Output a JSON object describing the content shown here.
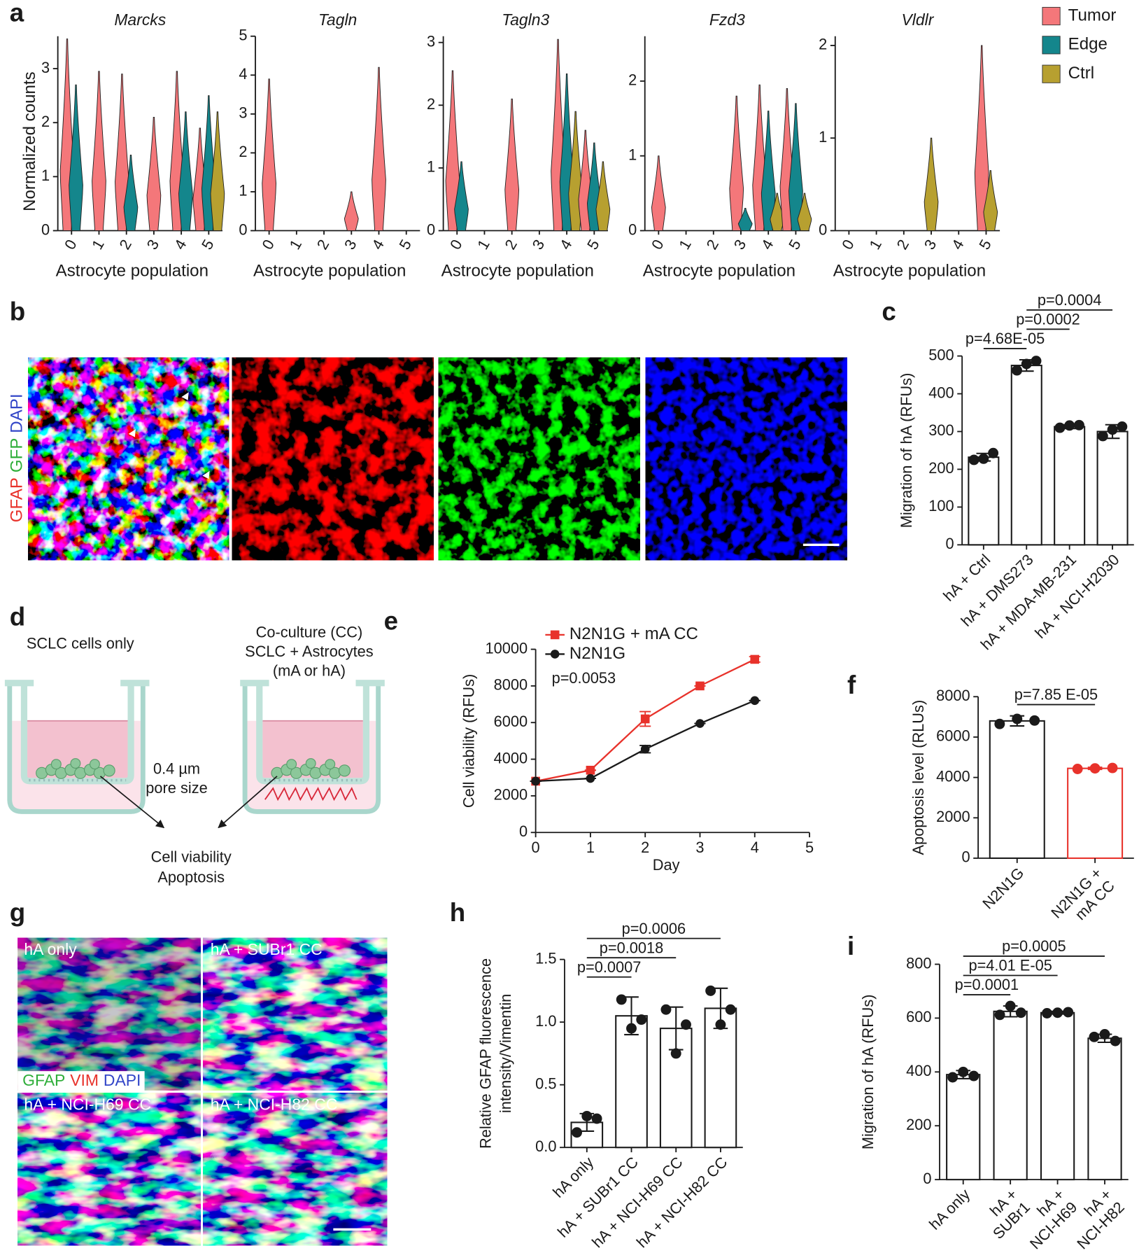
{
  "panels": [
    "a",
    "b",
    "c",
    "d",
    "e",
    "f",
    "g",
    "h",
    "i"
  ],
  "chart_data": [
    {
      "type": "violin-grid",
      "xlabel": "Astrocyte population",
      "ylabel": "Normalized counts",
      "categories": [
        "0",
        "1",
        "2",
        "3",
        "4",
        "5"
      ],
      "series": [
        {
          "name": "Tumor",
          "color": "#f4777a"
        },
        {
          "name": "Edge",
          "color": "#14868c"
        },
        {
          "name": "Ctrl",
          "color": "#b7a030"
        }
      ],
      "plots": [
        {
          "title": "Marcks",
          "ylim": [
            0,
            3.6
          ],
          "yticks": [
            0,
            1,
            2,
            3
          ],
          "values": [
            [
              3.55,
              2.95,
              2.9,
              2.1,
              2.95,
              1.9
            ],
            [
              2.7,
              null,
              1.4,
              null,
              2.2,
              2.5
            ],
            [
              null,
              null,
              null,
              null,
              null,
              2.2
            ]
          ]
        },
        {
          "title": "Tagln",
          "ylim": [
            0,
            5
          ],
          "yticks": [
            0,
            1,
            2,
            3,
            4,
            5
          ],
          "values": [
            [
              3.9,
              null,
              null,
              1.0,
              4.2,
              null
            ],
            [
              null,
              null,
              null,
              null,
              null,
              null
            ],
            [
              null,
              null,
              null,
              null,
              null,
              null
            ]
          ]
        },
        {
          "title": "Tagln3",
          "ylim": [
            0,
            3.1
          ],
          "yticks": [
            0,
            1,
            2,
            3
          ],
          "values": [
            [
              2.55,
              null,
              2.1,
              null,
              3.05,
              1.6
            ],
            [
              1.1,
              null,
              null,
              null,
              2.5,
              1.4
            ],
            [
              null,
              null,
              null,
              null,
              1.9,
              1.1
            ]
          ]
        },
        {
          "title": "Fzd3",
          "ylim": [
            0,
            2.6
          ],
          "yticks": [
            0,
            1,
            2
          ],
          "values": [
            [
              1.0,
              null,
              null,
              1.8,
              1.95,
              1.9
            ],
            [
              null,
              null,
              null,
              0.3,
              1.6,
              1.7
            ],
            [
              null,
              null,
              null,
              null,
              0.5,
              0.5
            ]
          ]
        },
        {
          "title": "Vldlr",
          "ylim": [
            0,
            2.1
          ],
          "yticks": [
            0,
            1,
            2
          ],
          "values": [
            [
              null,
              null,
              null,
              null,
              null,
              2.0
            ],
            [
              null,
              null,
              null,
              null,
              null,
              null
            ],
            [
              null,
              null,
              null,
              1.0,
              null,
              0.65
            ]
          ]
        }
      ]
    },
    {
      "type": "bar",
      "ylabel": "Migration of hA (RFUs)",
      "color": "#1a1a1a",
      "categories": [
        "hA + Ctrl",
        "hA + DMS273",
        "hA + MDA-MB-231",
        "hA + NCI-H2030"
      ],
      "values": [
        232,
        475,
        313,
        300
      ],
      "errors": [
        10,
        15,
        5,
        18
      ],
      "points": [
        [
          225,
          228,
          243
        ],
        [
          462,
          479,
          487
        ],
        [
          310,
          316,
          317
        ],
        [
          288,
          305,
          313
        ]
      ],
      "ylim": [
        0,
        500
      ],
      "yticks": [
        0,
        100,
        200,
        300,
        400,
        500
      ],
      "brackets": [
        {
          "label": "p=4.68E-05",
          "from": "hA + Ctrl",
          "to": "hA + DMS273"
        },
        {
          "label": "p=0.0002",
          "from": "hA + DMS273",
          "to": "hA + MDA-MB-231"
        },
        {
          "label": "p=0.0004",
          "from": "hA + DMS273",
          "to": "hA + NCI-H2030"
        }
      ]
    },
    {
      "type": "line",
      "xlabel": "Day",
      "ylabel": "Cell viability (RFUs)",
      "annotation": "p=0.0053",
      "x": [
        0,
        1,
        2,
        3,
        4
      ],
      "xlim": [
        0,
        5
      ],
      "xticks": [
        0,
        1,
        2,
        3,
        4,
        5
      ],
      "ylim": [
        0,
        10000
      ],
      "yticks": [
        0,
        2000,
        4000,
        6000,
        8000,
        10000
      ],
      "series": [
        {
          "name": "N2N1G + mA CC",
          "color": "#e8322b",
          "marker": "square",
          "values": [
            2800,
            3400,
            6200,
            8000,
            9450
          ],
          "errors": [
            0,
            0,
            400,
            0,
            150
          ]
        },
        {
          "name": "N2N1G",
          "color": "#1a1a1a",
          "marker": "circle",
          "values": [
            2800,
            2950,
            4550,
            5950,
            7200
          ],
          "errors": [
            0,
            0,
            200,
            0,
            0
          ]
        }
      ]
    },
    {
      "type": "bar",
      "ylabel": "Apoptosis level (RLUs)",
      "colors": [
        "#1a1a1a",
        "#e8322b"
      ],
      "categories": [
        "N2N1G",
        [
          "N2N1G +",
          "mA CC"
        ]
      ],
      "values": [
        6800,
        4450
      ],
      "errors": [
        250,
        50
      ],
      "points": [
        [
          6650,
          6900,
          6820
        ],
        [
          4420,
          4450,
          4470
        ]
      ],
      "ylim": [
        0,
        8000
      ],
      "yticks": [
        0,
        2000,
        4000,
        6000,
        8000
      ],
      "brackets": [
        {
          "label": "p=7.85 E-05",
          "from": "N2N1G",
          "to": "N2N1G + mA CC"
        }
      ]
    },
    {
      "type": "bar",
      "ylabel": [
        "Relative GFAP fluorescence",
        "intensity/Vimentin"
      ],
      "color": "#1a1a1a",
      "categories": [
        "hA only",
        "hA + SUBr1 CC",
        "hA + NCI-H69 CC",
        "hA + NCI-H82 CC"
      ],
      "values": [
        0.2,
        1.05,
        0.95,
        1.11
      ],
      "errors": [
        0.07,
        0.15,
        0.17,
        0.16
      ],
      "points": [
        [
          0.12,
          0.25,
          0.23
        ],
        [
          1.18,
          0.95,
          1.02
        ],
        [
          1.1,
          0.75,
          0.98
        ],
        [
          1.25,
          0.98,
          1.1
        ]
      ],
      "ylim": [
        0,
        1.5
      ],
      "yticks": [
        {
          "value": 0,
          "label": "0.0"
        },
        0.5,
        {
          "value": 1,
          "label": "1.0"
        },
        1.5
      ],
      "brackets": [
        {
          "label": "p=0.0007",
          "from": "hA only",
          "to": "hA + SUBr1 CC"
        },
        {
          "label": "p=0.0018",
          "from": "hA only",
          "to": "hA + NCI-H69 CC"
        },
        {
          "label": "p=0.0006",
          "from": "hA only",
          "to": "hA + NCI-H82 CC"
        }
      ]
    },
    {
      "type": "bar",
      "ylabel": "Migration of hA (RFUs)",
      "color": "#1a1a1a",
      "categories": [
        "hA only",
        [
          "hA +",
          "SUBr1"
        ],
        [
          "hA +",
          "NCI-H69"
        ],
        [
          "hA +",
          "NCI-H82"
        ]
      ],
      "values": [
        390,
        625,
        620,
        525
      ],
      "errors": [
        15,
        20,
        5,
        15
      ],
      "points": [
        [
          380,
          400,
          385
        ],
        [
          612,
          645,
          620
        ],
        [
          618,
          620,
          622
        ],
        [
          530,
          540,
          515
        ]
      ],
      "ylim": [
        0,
        800
      ],
      "yticks": [
        0,
        200,
        400,
        600,
        800
      ],
      "brackets": [
        {
          "label": "p=0.0001",
          "from": "hA only",
          "to": "hA + SUBr1"
        },
        {
          "label": "p=4.01 E-05",
          "from": "hA only",
          "to": "hA + NCI-H69"
        },
        {
          "label": "p=0.0005",
          "from": "hA only",
          "to": "hA + NCI-H82"
        }
      ]
    }
  ],
  "images": {
    "b": {
      "stain": [
        {
          "text": "GFAP",
          "color": "#e8322b"
        },
        {
          "text": "GFP",
          "color": "#2fae3a"
        },
        {
          "text": "DAPI",
          "color": "#3346c8"
        }
      ]
    },
    "g": {
      "labels": [
        "hA only",
        "hA + SUBr1 CC",
        "hA + NCI-H69 CC",
        "hA + NCI-H82 CC"
      ],
      "stain": [
        {
          "text": "GFAP",
          "color": "#2fae3a"
        },
        {
          "text": "VIM",
          "color": "#e8322b"
        },
        {
          "text": "DAPI",
          "color": "#3346c8"
        }
      ]
    }
  },
  "diagram": {
    "left_title": "SCLC cells only",
    "right_title": [
      "Co-culture (CC)",
      "SCLC + Astrocytes",
      "(mA or hA)"
    ],
    "pore": [
      "0.4 µm",
      "pore size"
    ],
    "readout": [
      "Cell viability",
      "Apoptosis"
    ]
  }
}
